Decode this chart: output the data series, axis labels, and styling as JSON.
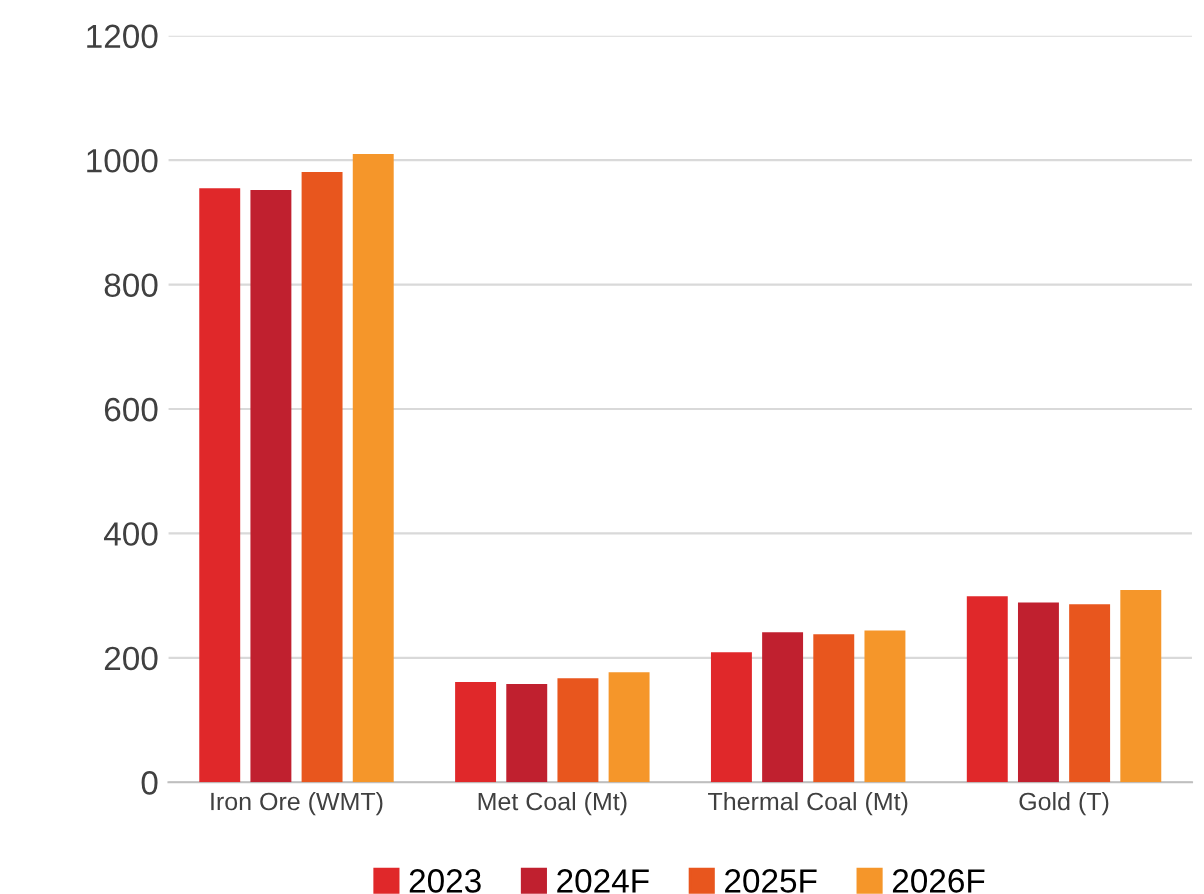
{
  "chart_data": {
    "type": "bar",
    "categories": [
      "Iron Ore (WMT)",
      "Met Coal (Mt)",
      "Thermal Coal (Mt)",
      "Gold (T)"
    ],
    "series": [
      {
        "name": "2023",
        "color": "#e0282a",
        "values": [
          955,
          161,
          209,
          299
        ]
      },
      {
        "name": "2024F",
        "color": "#c0202f",
        "values": [
          952,
          158,
          241,
          289
        ]
      },
      {
        "name": "2025F",
        "color": "#e8561e",
        "values": [
          981,
          167,
          238,
          286
        ]
      },
      {
        "name": "2026F",
        "color": "#f5962a",
        "values": [
          1010,
          177,
          244,
          309
        ]
      }
    ],
    "ylim": [
      0,
      1200
    ],
    "yticks": [
      0,
      200,
      400,
      600,
      800,
      1000,
      1200
    ],
    "grid": "y",
    "legend": "bottom"
  }
}
